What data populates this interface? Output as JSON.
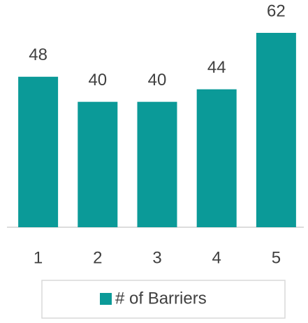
{
  "chart_data": {
    "type": "bar",
    "categories": [
      "1",
      "2",
      "3",
      "4",
      "5"
    ],
    "series": [
      {
        "name": "# of Barriers",
        "color": "#0b9a98",
        "values": [
          48,
          40,
          40,
          44,
          62
        ]
      }
    ],
    "legend": "bottom"
  }
}
